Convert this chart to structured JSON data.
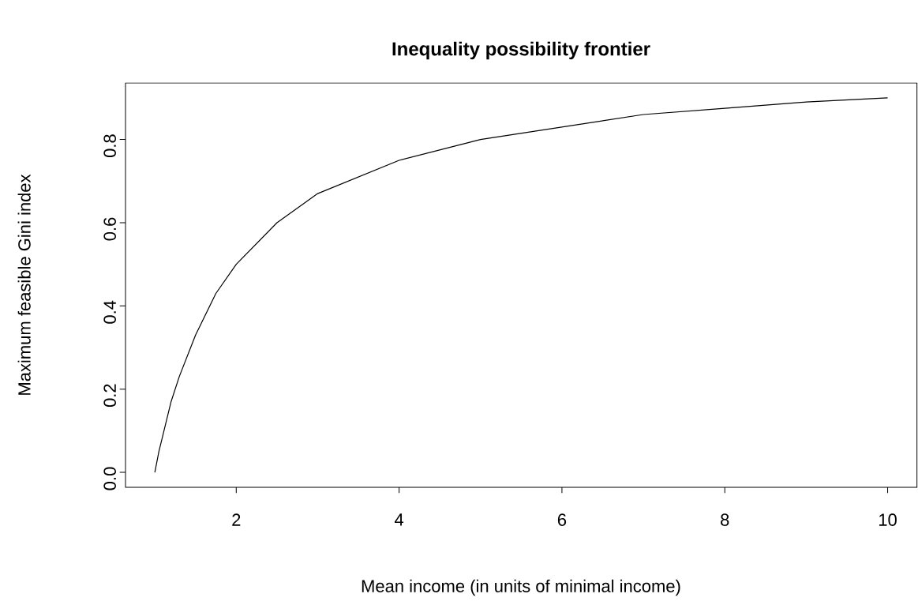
{
  "chart_data": {
    "type": "line",
    "title": "Inequality possibility frontier",
    "xlabel": "Mean income (in units of minimal income)",
    "ylabel": "Maximum feasible Gini index",
    "x": [
      1,
      1.05,
      1.1,
      1.2,
      1.3,
      1.5,
      1.75,
      2,
      2.5,
      3,
      3.5,
      4,
      5,
      6,
      7,
      8,
      9,
      10
    ],
    "series": [
      {
        "color": "#000000",
        "values": [
          0,
          0.05,
          0.09,
          0.17,
          0.23,
          0.33,
          0.43,
          0.5,
          0.6,
          0.67,
          0.71,
          0.75,
          0.8,
          0.83,
          0.86,
          0.875,
          0.89,
          0.9
        ]
      }
    ],
    "xlim": [
      0.64,
      10.36
    ],
    "ylim": [
      -0.036,
      0.936
    ],
    "xticks": [
      2,
      4,
      6,
      8,
      10
    ],
    "yticks": [
      {
        "value": 0,
        "label": "0.0"
      },
      0.2,
      0.4,
      0.6,
      0.8
    ],
    "marker": "none",
    "line_style": "solid"
  }
}
